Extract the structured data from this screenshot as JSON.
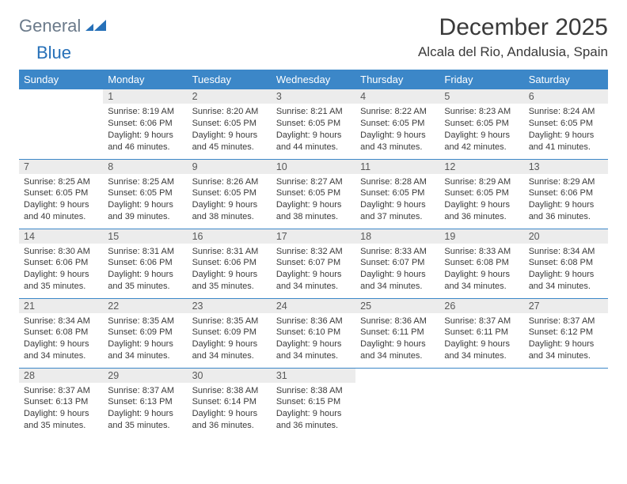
{
  "logo": {
    "part1": "General",
    "part2": "Blue"
  },
  "title": "December 2025",
  "location": "Alcala del Rio, Andalusia, Spain",
  "colors": {
    "header_bg": "#3c87c8",
    "header_text": "#ffffff",
    "daynum_bg": "#ececec",
    "daynum_text": "#585858",
    "body_text": "#3a3a3a",
    "rule": "#3c87c8",
    "logo_gray": "#6b7a8a",
    "logo_blue": "#2670b8"
  },
  "day_headers": [
    "Sunday",
    "Monday",
    "Tuesday",
    "Wednesday",
    "Thursday",
    "Friday",
    "Saturday"
  ],
  "weeks": [
    [
      {
        "n": "",
        "sr": "",
        "ss": "",
        "dl": ""
      },
      {
        "n": "1",
        "sr": "Sunrise: 8:19 AM",
        "ss": "Sunset: 6:06 PM",
        "dl": "Daylight: 9 hours and 46 minutes."
      },
      {
        "n": "2",
        "sr": "Sunrise: 8:20 AM",
        "ss": "Sunset: 6:05 PM",
        "dl": "Daylight: 9 hours and 45 minutes."
      },
      {
        "n": "3",
        "sr": "Sunrise: 8:21 AM",
        "ss": "Sunset: 6:05 PM",
        "dl": "Daylight: 9 hours and 44 minutes."
      },
      {
        "n": "4",
        "sr": "Sunrise: 8:22 AM",
        "ss": "Sunset: 6:05 PM",
        "dl": "Daylight: 9 hours and 43 minutes."
      },
      {
        "n": "5",
        "sr": "Sunrise: 8:23 AM",
        "ss": "Sunset: 6:05 PM",
        "dl": "Daylight: 9 hours and 42 minutes."
      },
      {
        "n": "6",
        "sr": "Sunrise: 8:24 AM",
        "ss": "Sunset: 6:05 PM",
        "dl": "Daylight: 9 hours and 41 minutes."
      }
    ],
    [
      {
        "n": "7",
        "sr": "Sunrise: 8:25 AM",
        "ss": "Sunset: 6:05 PM",
        "dl": "Daylight: 9 hours and 40 minutes."
      },
      {
        "n": "8",
        "sr": "Sunrise: 8:25 AM",
        "ss": "Sunset: 6:05 PM",
        "dl": "Daylight: 9 hours and 39 minutes."
      },
      {
        "n": "9",
        "sr": "Sunrise: 8:26 AM",
        "ss": "Sunset: 6:05 PM",
        "dl": "Daylight: 9 hours and 38 minutes."
      },
      {
        "n": "10",
        "sr": "Sunrise: 8:27 AM",
        "ss": "Sunset: 6:05 PM",
        "dl": "Daylight: 9 hours and 38 minutes."
      },
      {
        "n": "11",
        "sr": "Sunrise: 8:28 AM",
        "ss": "Sunset: 6:05 PM",
        "dl": "Daylight: 9 hours and 37 minutes."
      },
      {
        "n": "12",
        "sr": "Sunrise: 8:29 AM",
        "ss": "Sunset: 6:05 PM",
        "dl": "Daylight: 9 hours and 36 minutes."
      },
      {
        "n": "13",
        "sr": "Sunrise: 8:29 AM",
        "ss": "Sunset: 6:06 PM",
        "dl": "Daylight: 9 hours and 36 minutes."
      }
    ],
    [
      {
        "n": "14",
        "sr": "Sunrise: 8:30 AM",
        "ss": "Sunset: 6:06 PM",
        "dl": "Daylight: 9 hours and 35 minutes."
      },
      {
        "n": "15",
        "sr": "Sunrise: 8:31 AM",
        "ss": "Sunset: 6:06 PM",
        "dl": "Daylight: 9 hours and 35 minutes."
      },
      {
        "n": "16",
        "sr": "Sunrise: 8:31 AM",
        "ss": "Sunset: 6:06 PM",
        "dl": "Daylight: 9 hours and 35 minutes."
      },
      {
        "n": "17",
        "sr": "Sunrise: 8:32 AM",
        "ss": "Sunset: 6:07 PM",
        "dl": "Daylight: 9 hours and 34 minutes."
      },
      {
        "n": "18",
        "sr": "Sunrise: 8:33 AM",
        "ss": "Sunset: 6:07 PM",
        "dl": "Daylight: 9 hours and 34 minutes."
      },
      {
        "n": "19",
        "sr": "Sunrise: 8:33 AM",
        "ss": "Sunset: 6:08 PM",
        "dl": "Daylight: 9 hours and 34 minutes."
      },
      {
        "n": "20",
        "sr": "Sunrise: 8:34 AM",
        "ss": "Sunset: 6:08 PM",
        "dl": "Daylight: 9 hours and 34 minutes."
      }
    ],
    [
      {
        "n": "21",
        "sr": "Sunrise: 8:34 AM",
        "ss": "Sunset: 6:08 PM",
        "dl": "Daylight: 9 hours and 34 minutes."
      },
      {
        "n": "22",
        "sr": "Sunrise: 8:35 AM",
        "ss": "Sunset: 6:09 PM",
        "dl": "Daylight: 9 hours and 34 minutes."
      },
      {
        "n": "23",
        "sr": "Sunrise: 8:35 AM",
        "ss": "Sunset: 6:09 PM",
        "dl": "Daylight: 9 hours and 34 minutes."
      },
      {
        "n": "24",
        "sr": "Sunrise: 8:36 AM",
        "ss": "Sunset: 6:10 PM",
        "dl": "Daylight: 9 hours and 34 minutes."
      },
      {
        "n": "25",
        "sr": "Sunrise: 8:36 AM",
        "ss": "Sunset: 6:11 PM",
        "dl": "Daylight: 9 hours and 34 minutes."
      },
      {
        "n": "26",
        "sr": "Sunrise: 8:37 AM",
        "ss": "Sunset: 6:11 PM",
        "dl": "Daylight: 9 hours and 34 minutes."
      },
      {
        "n": "27",
        "sr": "Sunrise: 8:37 AM",
        "ss": "Sunset: 6:12 PM",
        "dl": "Daylight: 9 hours and 34 minutes."
      }
    ],
    [
      {
        "n": "28",
        "sr": "Sunrise: 8:37 AM",
        "ss": "Sunset: 6:13 PM",
        "dl": "Daylight: 9 hours and 35 minutes."
      },
      {
        "n": "29",
        "sr": "Sunrise: 8:37 AM",
        "ss": "Sunset: 6:13 PM",
        "dl": "Daylight: 9 hours and 35 minutes."
      },
      {
        "n": "30",
        "sr": "Sunrise: 8:38 AM",
        "ss": "Sunset: 6:14 PM",
        "dl": "Daylight: 9 hours and 36 minutes."
      },
      {
        "n": "31",
        "sr": "Sunrise: 8:38 AM",
        "ss": "Sunset: 6:15 PM",
        "dl": "Daylight: 9 hours and 36 minutes."
      },
      {
        "n": "",
        "sr": "",
        "ss": "",
        "dl": ""
      },
      {
        "n": "",
        "sr": "",
        "ss": "",
        "dl": ""
      },
      {
        "n": "",
        "sr": "",
        "ss": "",
        "dl": ""
      }
    ]
  ]
}
